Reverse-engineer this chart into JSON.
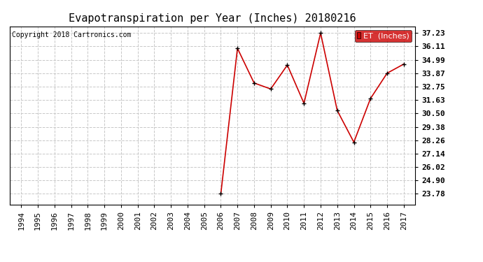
{
  "title": "Evapotranspiration per Year (Inches) 20180216",
  "copyright": "Copyright 2018 Cartronics.com",
  "legend_label": "ET  (Inches)",
  "years": [
    1994,
    1995,
    1996,
    1997,
    1998,
    1999,
    2000,
    2001,
    2002,
    2003,
    2004,
    2005,
    2006,
    2007,
    2008,
    2009,
    2010,
    2011,
    2012,
    2013,
    2014,
    2015,
    2016,
    2017
  ],
  "et_values": [
    null,
    null,
    null,
    null,
    null,
    null,
    null,
    null,
    null,
    null,
    null,
    null,
    23.78,
    35.95,
    33.05,
    32.55,
    34.55,
    31.35,
    37.23,
    30.75,
    28.1,
    31.75,
    33.87,
    34.63
  ],
  "line_color": "#cc0000",
  "marker_color": "#000000",
  "grid_color": "#c8c8c8",
  "background_color": "#ffffff",
  "yticks": [
    23.78,
    24.9,
    26.02,
    27.14,
    28.26,
    29.38,
    30.5,
    31.63,
    32.75,
    33.87,
    34.99,
    36.11,
    37.23
  ],
  "ylim_min": 22.9,
  "ylim_max": 37.8,
  "legend_bg": "#cc0000",
  "legend_text_color": "#ffffff",
  "title_fontsize": 11,
  "copyright_fontsize": 7,
  "tick_fontsize": 8,
  "ytick_fontsize": 8
}
